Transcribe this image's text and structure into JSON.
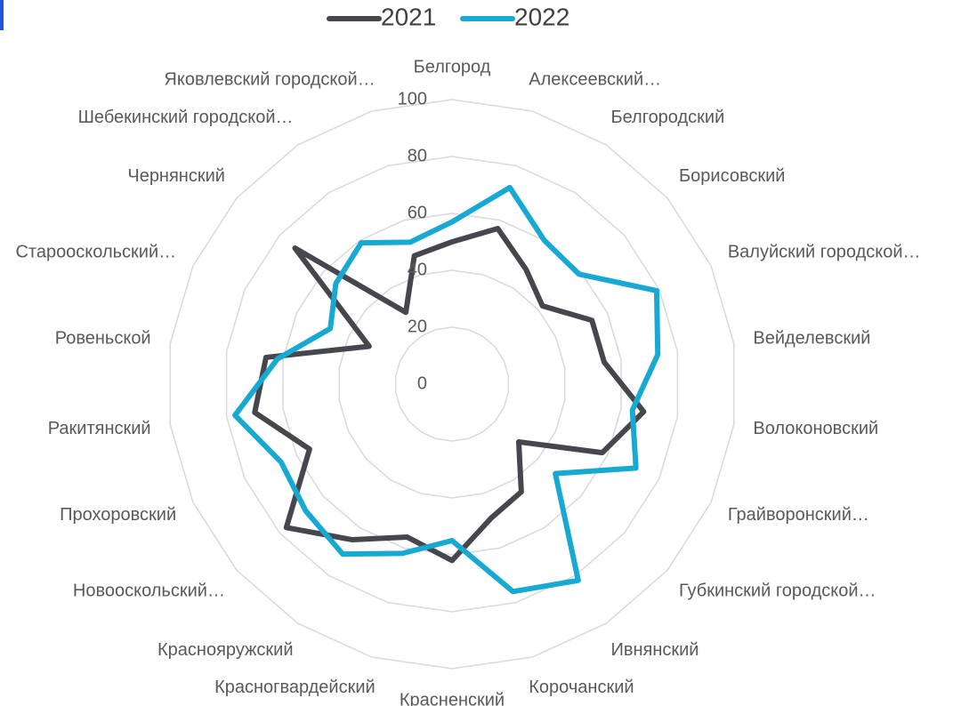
{
  "chart_data": {
    "type": "radar",
    "categories": [
      "Белгород",
      "Алексеевский…",
      "Белгородский",
      "Борисовский",
      "Валуйский городской…",
      "Вейделевский",
      "Волоконовский",
      "Грайворонский…",
      "Губкинский городской…",
      "Ивнянский",
      "Корочанский",
      "Красненский",
      "Красногвардейский",
      "Краснояружский",
      "Новооскольский…",
      "Прохоровский",
      "Ракитянский",
      "Ровеньской",
      "Старооскольский…",
      "Чернянский",
      "Шебекинский городской…",
      "Яковлевский городской…"
    ],
    "series": [
      {
        "name": "2021",
        "color": "#45474d",
        "values": [
          50,
          57,
          48,
          42,
          54,
          54,
          68,
          58,
          31,
          45,
          49,
          62,
          56,
          65,
          77,
          55,
          70,
          66,
          32,
          73,
          30,
          47
        ]
      },
      {
        "name": "2022",
        "color": "#17a9d1",
        "values": [
          57,
          72,
          60,
          59,
          79,
          73,
          64,
          71,
          48,
          82,
          76,
          55,
          62,
          71,
          68,
          66,
          77,
          62,
          47,
          54,
          59,
          52
        ]
      }
    ],
    "ylim": [
      0,
      100
    ],
    "yticks": [
      0,
      20,
      40,
      60,
      80,
      100
    ],
    "grid": true,
    "legend": "top"
  }
}
